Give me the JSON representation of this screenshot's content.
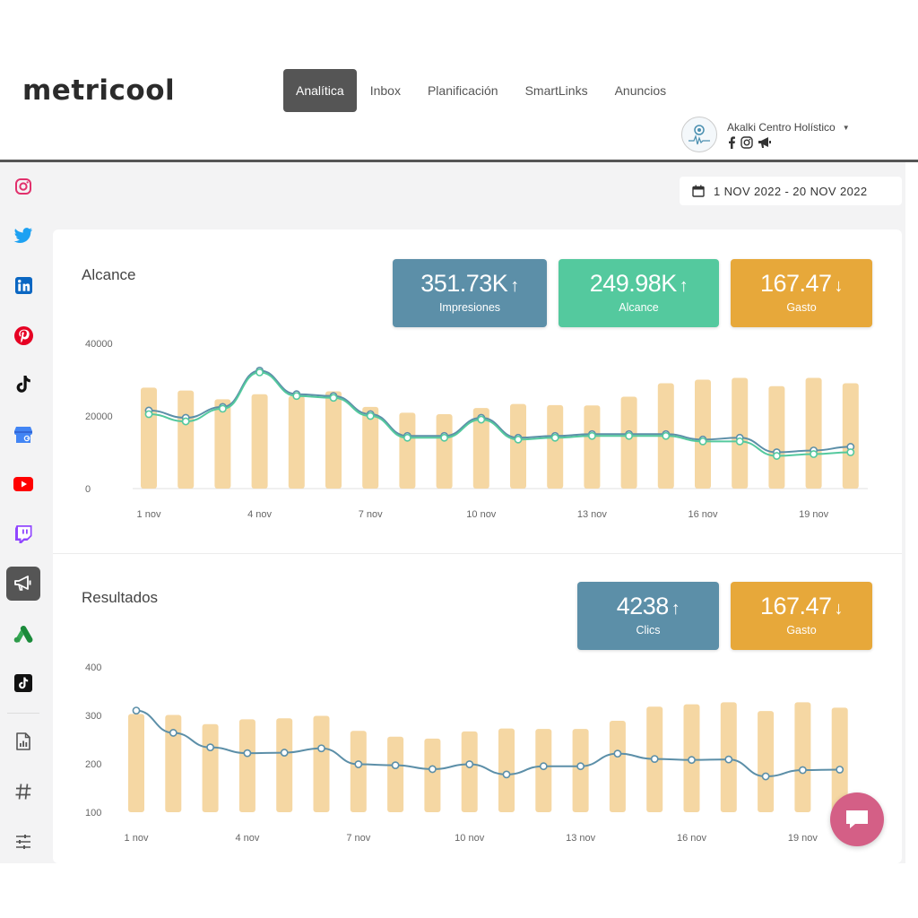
{
  "header": {
    "logo": "metricool",
    "nav": [
      {
        "label": "Analítica",
        "active": true
      },
      {
        "label": "Inbox",
        "active": false
      },
      {
        "label": "Planificación",
        "active": false
      },
      {
        "label": "SmartLinks",
        "active": false
      },
      {
        "label": "Anuncios",
        "active": false
      }
    ],
    "account": {
      "name": "Akalki Centro Holístico",
      "networks": [
        "facebook-icon",
        "instagram-icon",
        "megaphone-icon"
      ]
    }
  },
  "sidebar": {
    "items": [
      {
        "icon": "instagram-icon",
        "color": "#e1306c"
      },
      {
        "icon": "twitter-icon",
        "color": "#1da1f2"
      },
      {
        "icon": "linkedin-icon",
        "color": "#0a66c2"
      },
      {
        "icon": "pinterest-icon",
        "color": "#e60023"
      },
      {
        "icon": "tiktok-icon",
        "color": "#111111"
      },
      {
        "icon": "google-business-icon",
        "color": "#4285f4"
      },
      {
        "icon": "youtube-icon",
        "color": "#ff0000"
      },
      {
        "icon": "twitch-icon",
        "color": "#9146ff"
      },
      {
        "icon": "ads-megaphone-icon",
        "color": "#ffffff",
        "active": true
      },
      {
        "icon": "google-ads-icon",
        "color": "#34a853"
      },
      {
        "icon": "tiktok-ads-icon",
        "color": "#111111"
      },
      {
        "icon": "report-icon",
        "color": "#555555"
      },
      {
        "icon": "hashtag-icon",
        "color": "#555555"
      },
      {
        "icon": "settings-sliders-icon",
        "color": "#555555"
      }
    ]
  },
  "date_range": "1 NOV 2022 - 20 NOV 2022",
  "alcance": {
    "title": "Alcance",
    "kpis": [
      {
        "value": "351.73K",
        "arrow": "↑",
        "label": "Impresiones",
        "color": "#5c8fa8"
      },
      {
        "value": "249.98K",
        "arrow": "↑",
        "label": "Alcance",
        "color": "#54c99e"
      },
      {
        "value": "167.47",
        "arrow": "↓",
        "label": "Gasto",
        "color": "#e7a83a"
      }
    ]
  },
  "resultados": {
    "title": "Resultados",
    "kpis": [
      {
        "value": "4238",
        "arrow": "↑",
        "label": "Clics",
        "color": "#5c8fa8"
      },
      {
        "value": "167.47",
        "arrow": "↓",
        "label": "Gasto",
        "color": "#e7a83a"
      }
    ]
  },
  "chart_data": [
    {
      "type": "bar",
      "yticks": [
        "40000",
        "20000",
        "0"
      ],
      "ylim": [
        0,
        40000
      ],
      "xticks": [
        "1 nov",
        "4 nov",
        "7 nov",
        "10 nov",
        "13 nov",
        "16 nov",
        "19 nov"
      ],
      "categories": [
        "1 nov",
        "2 nov",
        "3 nov",
        "4 nov",
        "5 nov",
        "6 nov",
        "7 nov",
        "8 nov",
        "9 nov",
        "10 nov",
        "11 nov",
        "12 nov",
        "13 nov",
        "14 nov",
        "15 nov",
        "16 nov",
        "17 nov",
        "18 nov",
        "19 nov",
        "20 nov"
      ],
      "bars": {
        "color": "#f5d7a3",
        "values": [
          27800,
          27000,
          24600,
          26000,
          25500,
          26800,
          22500,
          20900,
          20500,
          22200,
          23300,
          23000,
          22900,
          25300,
          29000,
          30000,
          30500,
          28200,
          30500,
          29000
        ]
      },
      "series": [
        {
          "color": "#5c8fa8",
          "values": [
            21500,
            19500,
            22500,
            32500,
            26000,
            25500,
            20500,
            14500,
            14500,
            19500,
            14000,
            14500,
            15000,
            15000,
            15000,
            13500,
            14000,
            10000,
            10500,
            11500
          ]
        },
        {
          "color": "#54c99e",
          "values": [
            20500,
            18500,
            22000,
            32000,
            25500,
            25000,
            20000,
            14000,
            14000,
            19000,
            13500,
            14000,
            14500,
            14500,
            14500,
            13000,
            13000,
            9000,
            9500,
            10000
          ]
        }
      ]
    },
    {
      "type": "bar",
      "yticks": [
        "400",
        "300",
        "200",
        "100"
      ],
      "ylim": [
        100,
        400
      ],
      "xticks": [
        "1 nov",
        "4 nov",
        "7 nov",
        "10 nov",
        "13 nov",
        "16 nov",
        "19 nov"
      ],
      "categories": [
        "1 nov",
        "2 nov",
        "3 nov",
        "4 nov",
        "5 nov",
        "6 nov",
        "7 nov",
        "8 nov",
        "9 nov",
        "10 nov",
        "11 nov",
        "12 nov",
        "13 nov",
        "14 nov",
        "15 nov",
        "16 nov",
        "17 nov",
        "18 nov",
        "19 nov",
        "20 nov"
      ],
      "bars": {
        "color": "#f5d7a3",
        "values": [
          303,
          301,
          282,
          292,
          294,
          299,
          268,
          256,
          252,
          267,
          273,
          272,
          272,
          289,
          318,
          323,
          327,
          309,
          327,
          316
        ]
      },
      "series": [
        {
          "color": "#5c8fa8",
          "values": [
            310,
            264,
            234,
            222,
            223,
            232,
            199,
            197,
            189,
            199,
            178,
            195,
            195,
            221,
            210,
            208,
            209,
            174,
            187,
            188
          ]
        }
      ]
    }
  ]
}
